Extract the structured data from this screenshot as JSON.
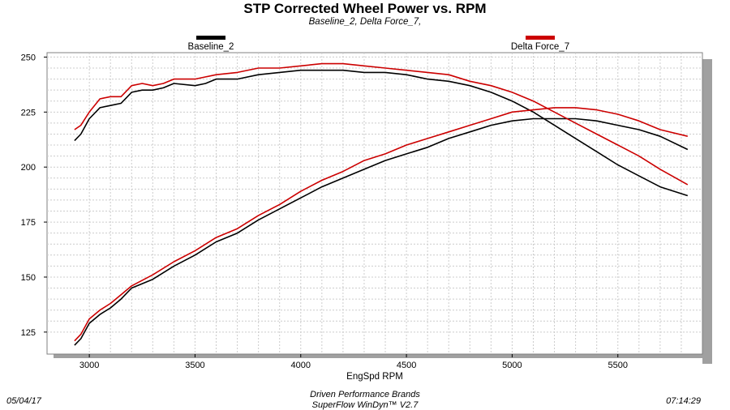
{
  "chart_data": {
    "type": "line",
    "title": "STP Corrected Wheel Power vs. RPM",
    "subtitle": "Baseline_2, Delta Force_7,",
    "xlabel": "EngSpd  RPM",
    "ylabel": "",
    "xlim": [
      2800,
      5900
    ],
    "ylim": [
      115,
      252
    ],
    "xticks": [
      3000,
      3500,
      4000,
      4500,
      5000,
      5500
    ],
    "yticks": [
      125,
      150,
      175,
      200,
      225,
      250
    ],
    "grid": true,
    "legend_placement": "top",
    "series": [
      {
        "name": "Baseline_2",
        "color": "#000000",
        "curves": [
          {
            "label": "power",
            "points": [
              [
                2930,
                212
              ],
              [
                2960,
                215
              ],
              [
                3000,
                222
              ],
              [
                3050,
                227
              ],
              [
                3100,
                228
              ],
              [
                3150,
                229
              ],
              [
                3200,
                234
              ],
              [
                3250,
                235
              ],
              [
                3300,
                235
              ],
              [
                3350,
                236
              ],
              [
                3400,
                238
              ],
              [
                3500,
                237
              ],
              [
                3550,
                238
              ],
              [
                3600,
                240
              ],
              [
                3700,
                240
              ],
              [
                3800,
                242
              ],
              [
                3900,
                243
              ],
              [
                4000,
                244
              ],
              [
                4100,
                244
              ],
              [
                4200,
                244
              ],
              [
                4300,
                243
              ],
              [
                4400,
                243
              ],
              [
                4500,
                242
              ],
              [
                4600,
                240
              ],
              [
                4700,
                239
              ],
              [
                4800,
                237
              ],
              [
                4900,
                234
              ],
              [
                5000,
                230
              ],
              [
                5100,
                225
              ],
              [
                5200,
                219
              ],
              [
                5300,
                213
              ],
              [
                5400,
                207
              ],
              [
                5500,
                201
              ],
              [
                5600,
                196
              ],
              [
                5700,
                191
              ],
              [
                5830,
                187
              ]
            ]
          },
          {
            "label": "torque",
            "points": [
              [
                2930,
                119
              ],
              [
                2960,
                122
              ],
              [
                3000,
                129
              ],
              [
                3050,
                133
              ],
              [
                3100,
                136
              ],
              [
                3150,
                140
              ],
              [
                3200,
                145
              ],
              [
                3300,
                149
              ],
              [
                3400,
                155
              ],
              [
                3500,
                160
              ],
              [
                3600,
                166
              ],
              [
                3700,
                170
              ],
              [
                3800,
                176
              ],
              [
                3900,
                181
              ],
              [
                4000,
                186
              ],
              [
                4100,
                191
              ],
              [
                4200,
                195
              ],
              [
                4300,
                199
              ],
              [
                4400,
                203
              ],
              [
                4500,
                206
              ],
              [
                4600,
                209
              ],
              [
                4700,
                213
              ],
              [
                4800,
                216
              ],
              [
                4900,
                219
              ],
              [
                5000,
                221
              ],
              [
                5100,
                222
              ],
              [
                5200,
                222
              ],
              [
                5300,
                222
              ],
              [
                5400,
                221
              ],
              [
                5500,
                219
              ],
              [
                5600,
                217
              ],
              [
                5700,
                214
              ],
              [
                5830,
                208
              ]
            ]
          }
        ]
      },
      {
        "name": "Delta Force_7",
        "color": "#cc0000",
        "curves": [
          {
            "label": "power",
            "points": [
              [
                2930,
                217
              ],
              [
                2960,
                219
              ],
              [
                3000,
                225
              ],
              [
                3050,
                231
              ],
              [
                3100,
                232
              ],
              [
                3150,
                232
              ],
              [
                3200,
                237
              ],
              [
                3250,
                238
              ],
              [
                3300,
                237
              ],
              [
                3350,
                238
              ],
              [
                3400,
                240
              ],
              [
                3500,
                240
              ],
              [
                3550,
                241
              ],
              [
                3600,
                242
              ],
              [
                3700,
                243
              ],
              [
                3800,
                245
              ],
              [
                3900,
                245
              ],
              [
                4000,
                246
              ],
              [
                4100,
                247
              ],
              [
                4200,
                247
              ],
              [
                4300,
                246
              ],
              [
                4400,
                245
              ],
              [
                4500,
                244
              ],
              [
                4600,
                243
              ],
              [
                4700,
                242
              ],
              [
                4800,
                239
              ],
              [
                4900,
                237
              ],
              [
                5000,
                234
              ],
              [
                5100,
                230
              ],
              [
                5200,
                225
              ],
              [
                5300,
                220
              ],
              [
                5400,
                215
              ],
              [
                5500,
                210
              ],
              [
                5600,
                205
              ],
              [
                5700,
                199
              ],
              [
                5830,
                192
              ]
            ]
          },
          {
            "label": "torque",
            "points": [
              [
                2930,
                121
              ],
              [
                2960,
                124
              ],
              [
                3000,
                131
              ],
              [
                3050,
                135
              ],
              [
                3100,
                138
              ],
              [
                3150,
                142
              ],
              [
                3200,
                146
              ],
              [
                3300,
                151
              ],
              [
                3400,
                157
              ],
              [
                3500,
                162
              ],
              [
                3600,
                168
              ],
              [
                3700,
                172
              ],
              [
                3800,
                178
              ],
              [
                3900,
                183
              ],
              [
                4000,
                189
              ],
              [
                4100,
                194
              ],
              [
                4200,
                198
              ],
              [
                4300,
                203
              ],
              [
                4400,
                206
              ],
              [
                4500,
                210
              ],
              [
                4600,
                213
              ],
              [
                4700,
                216
              ],
              [
                4800,
                219
              ],
              [
                4900,
                222
              ],
              [
                5000,
                225
              ],
              [
                5100,
                226
              ],
              [
                5200,
                227
              ],
              [
                5300,
                227
              ],
              [
                5400,
                226
              ],
              [
                5500,
                224
              ],
              [
                5600,
                221
              ],
              [
                5700,
                217
              ],
              [
                5830,
                214
              ]
            ]
          }
        ]
      }
    ]
  },
  "footer": {
    "date": "05/04/17",
    "time": "07:14:29",
    "company": "Driven Performance Brands",
    "software": "SuperFlow WinDyn™ V2.7"
  }
}
